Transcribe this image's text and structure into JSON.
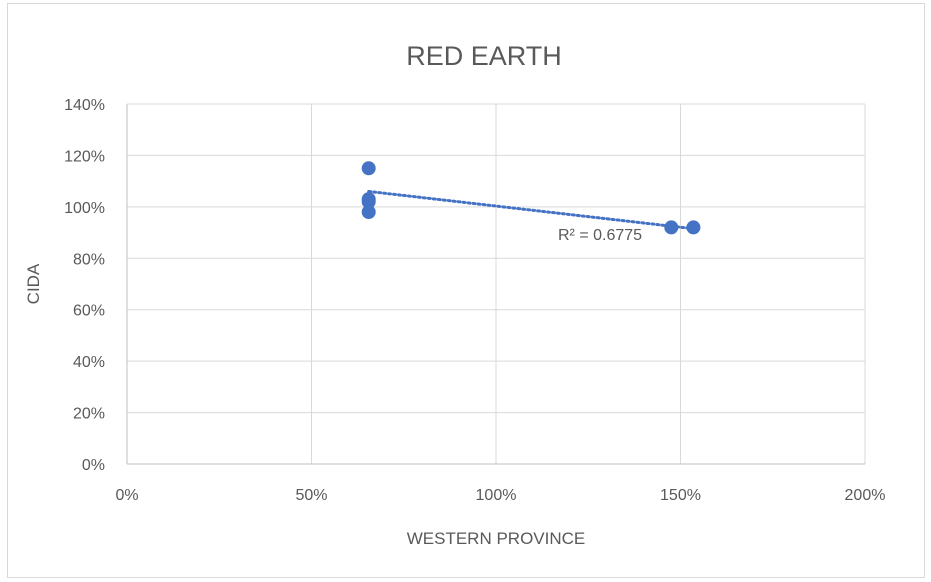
{
  "chart_data": {
    "type": "scatter",
    "title": "RED EARTH",
    "xlabel": "WESTERN PROVINCE",
    "ylabel": "CIDA",
    "xlim": [
      0,
      2
    ],
    "ylim": [
      0,
      1.4
    ],
    "x_ticks": [
      0,
      0.5,
      1,
      1.5,
      2
    ],
    "y_ticks": [
      0,
      0.2,
      0.4,
      0.6,
      0.8,
      1,
      1.2,
      1.4
    ],
    "x_tick_labels": [
      "0%",
      "50%",
      "100%",
      "150%",
      "200%"
    ],
    "y_tick_labels": [
      "0%",
      "20%",
      "40%",
      "60%",
      "80%",
      "100%",
      "120%",
      "140%"
    ],
    "grid": true,
    "legend": "none",
    "series": [
      {
        "x": [
          0.655,
          0.655,
          0.655,
          0.655,
          1.475,
          1.535
        ],
        "y": [
          1.15,
          1.03,
          1.02,
          0.98,
          0.92,
          0.92
        ],
        "color": "#4472c4"
      }
    ],
    "trendline": {
      "kind": "linear",
      "x_range": [
        0.655,
        1.535
      ],
      "y_range": [
        1.06,
        0.915
      ],
      "label": "R² = 0.6775",
      "color": "#4472c4"
    }
  }
}
